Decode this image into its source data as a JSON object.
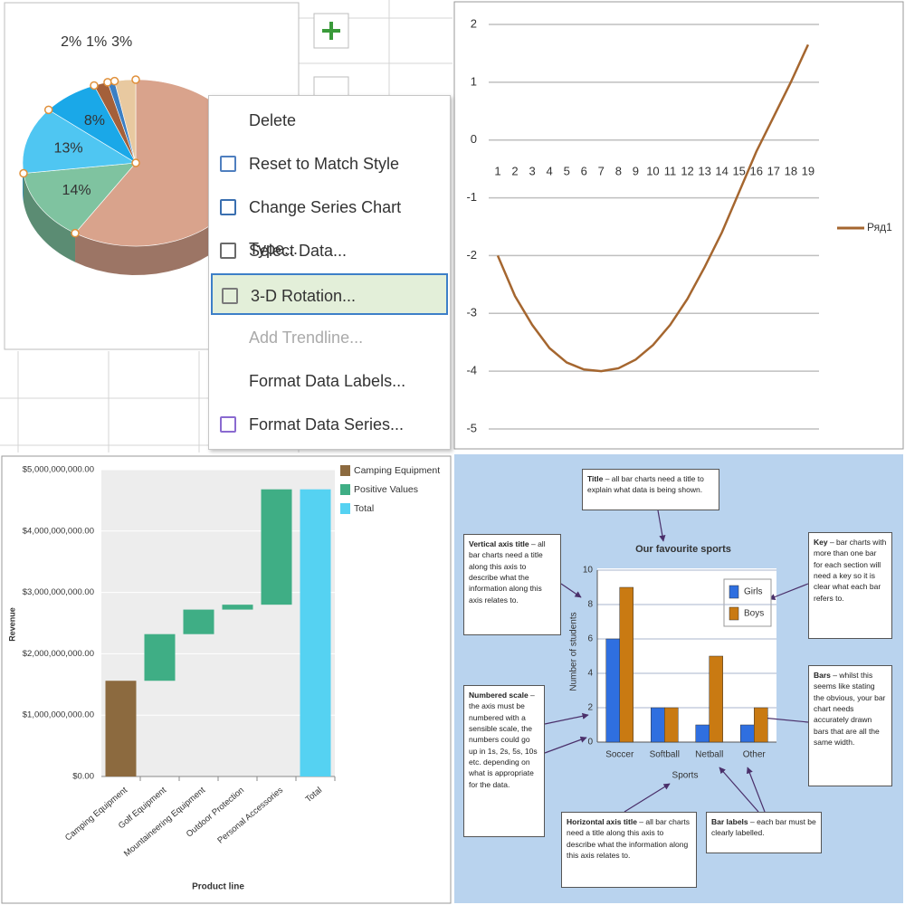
{
  "chart_data": [
    {
      "type": "pie",
      "values": [
        59,
        14,
        13,
        8,
        2,
        1,
        3
      ],
      "value_labels": [
        null,
        "14%",
        "13%",
        "8%",
        "2%",
        "1%",
        "3%"
      ],
      "colors": [
        "#d9a38c",
        "#7fc3a0",
        "#4fc6f2",
        "#1aa8e8",
        "#a4603a",
        "#3b7fc4",
        "#e8c9a0"
      ],
      "three_d": true
    },
    {
      "type": "line",
      "categories": [
        1,
        2,
        3,
        4,
        5,
        6,
        7,
        8,
        9,
        10,
        11,
        12,
        13,
        14,
        15,
        16,
        17,
        18,
        19
      ],
      "series": [
        {
          "name": "Ряд1",
          "color": "#a5662f",
          "values": [
            -2,
            -2.7,
            -3.2,
            -3.6,
            -3.85,
            -3.97,
            -4,
            -3.95,
            -3.8,
            -3.55,
            -3.2,
            -2.75,
            -2.2,
            -1.6,
            -0.9,
            -0.2,
            0.4,
            1.0,
            1.65
          ]
        }
      ],
      "ylim": [
        -5,
        2
      ],
      "yticks": [
        -5,
        -4,
        -3,
        -2,
        -1,
        0,
        1,
        2
      ],
      "grid": true,
      "legend": "right"
    },
    {
      "type": "waterfall",
      "x_label": "Product line",
      "y_label": "Revenue",
      "categories": [
        "Camping Equipment",
        "Golf Equipment",
        "Mountaineering Equipment",
        "Outdoor Protection",
        "Personal Accessories",
        "Total"
      ],
      "series": [
        {
          "name": "Camping Equipment",
          "color": "#8c6a3f",
          "values": [
            1560000000,
            null,
            null,
            null,
            null,
            null
          ]
        },
        {
          "name": "Positive Values",
          "color": "#3fae85",
          "values": [
            null,
            760000000,
            400000000,
            80000000,
            1880000000,
            null
          ]
        },
        {
          "name": "Total",
          "color": "#55d2f2",
          "values": [
            null,
            null,
            null,
            null,
            null,
            4680000000
          ]
        }
      ],
      "ylim": [
        0,
        5000000000
      ],
      "yticks": [
        {
          "value": 0,
          "label": "$0.00"
        },
        {
          "value": 1000000000,
          "label": "$1,000,000,000.00"
        },
        {
          "value": 2000000000,
          "label": "$2,000,000,000.00"
        },
        {
          "value": 3000000000,
          "label": "$3,000,000,000.00"
        },
        {
          "value": 4000000000,
          "label": "$4,000,000,000.00"
        },
        {
          "value": 5000000000,
          "label": "$5,000,000,000.00"
        }
      ],
      "grid": true,
      "legend": "upper right"
    },
    {
      "type": "bar",
      "title": "Our favourite sports",
      "x_label": "Sports",
      "y_label": "Number of students",
      "categories": [
        "Soccer",
        "Softball",
        "Netball",
        "Other"
      ],
      "series": [
        {
          "name": "Girls",
          "color": "#2f6fe0",
          "values": [
            6,
            2,
            1,
            1
          ]
        },
        {
          "name": "Boys",
          "color": "#c97a12",
          "values": [
            9,
            2,
            5,
            2
          ]
        }
      ],
      "ylim": [
        0,
        10
      ],
      "yticks": [
        0,
        2,
        4,
        6,
        8,
        10
      ],
      "grid": true,
      "legend": "upper right",
      "annotations": [
        {
          "heading": "Title",
          "text": " – all bar charts need a title to explain what data is being shown."
        },
        {
          "heading": "Vertical axis title",
          "text": " – all bar charts need a title along this axis to describe what the information along this axis relates to."
        },
        {
          "heading": "Key",
          "text": " – bar charts with more than one bar for each section will need a key so it is clear what each bar refers to."
        },
        {
          "heading": "Bars",
          "text": " – whilst this seems like stating the obvious, your bar chart needs accurately drawn bars that are all the same width."
        },
        {
          "heading": "Numbered scale",
          "text": " – the axis must be numbered with a sensible scale, the numbers could go up in 1s, 2s, 5s, 10s etc. depending on what is appropriate for the data."
        },
        {
          "heading": "Horizontal axis title",
          "text": " – all bar charts need a title along this axis to describe what the information along this axis relates to."
        },
        {
          "heading": "Bar labels",
          "text": " – each bar must be clearly labelled."
        }
      ]
    }
  ],
  "context_menu": {
    "items": [
      {
        "label": "Delete"
      },
      {
        "label": "Reset to Match Style"
      },
      {
        "label": "Change Series Chart Type..."
      },
      {
        "label": "Select Data..."
      },
      {
        "label": "3-D Rotation...",
        "highlighted": true
      },
      {
        "label": "Add Trendline...",
        "disabled": true
      },
      {
        "label": "Format Data Labels..."
      },
      {
        "label": "Format Data Series..."
      }
    ]
  }
}
